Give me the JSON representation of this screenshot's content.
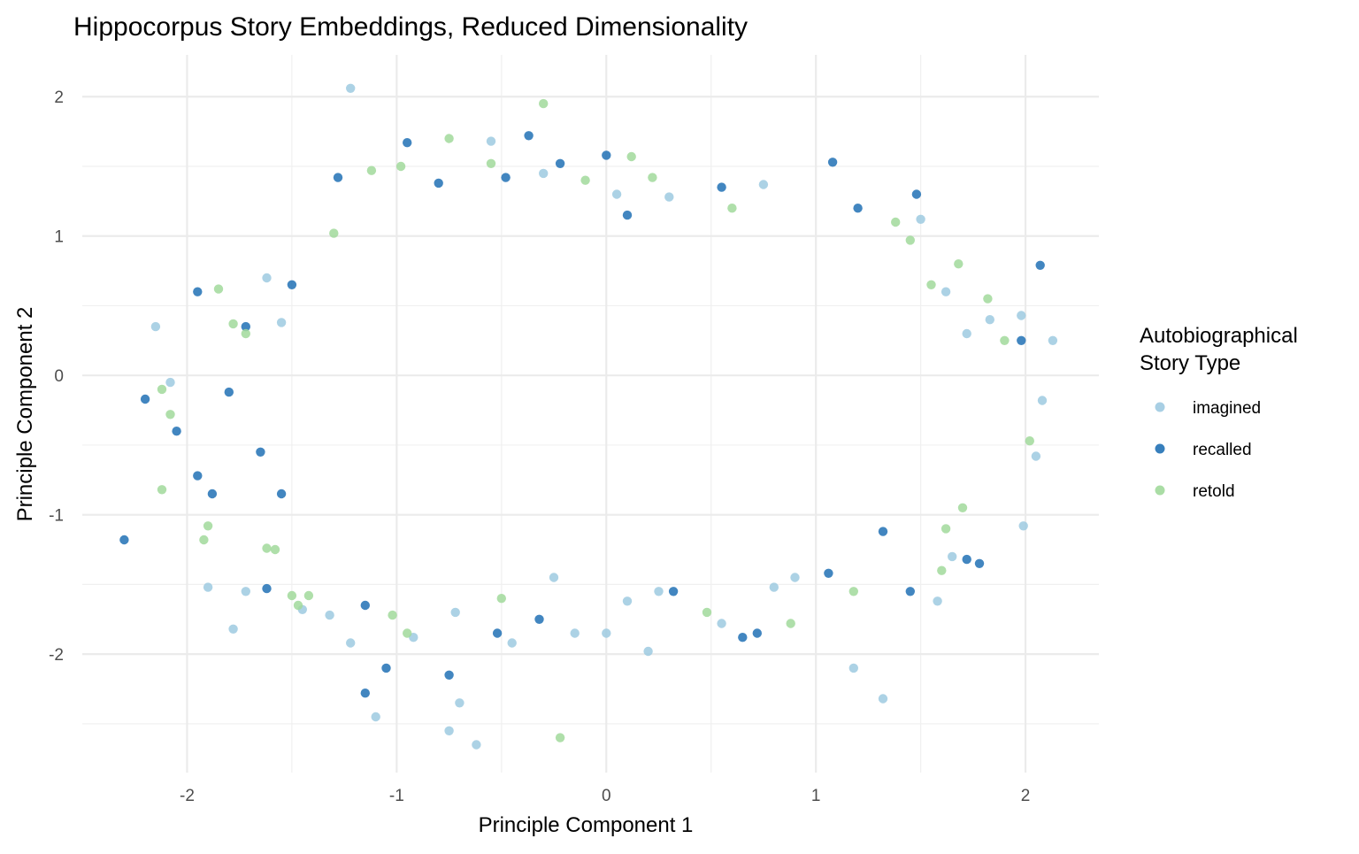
{
  "chart_data": {
    "type": "scatter",
    "title": "Hippocorpus Story Embeddings, Reduced Dimensionality",
    "xlabel": "Principle Component 1",
    "ylabel": "Principle Component 2",
    "xlim": [
      -2.5,
      2.35
    ],
    "ylim": [
      -2.85,
      2.3
    ],
    "xticks": [
      -2,
      -1,
      0,
      1,
      2
    ],
    "yticks": [
      -2,
      -1,
      0,
      1,
      2
    ],
    "xtick_labels": [
      "-2",
      "-1",
      "0",
      "1",
      "2"
    ],
    "ytick_labels": [
      "-2",
      "-1",
      "0",
      "1",
      "2"
    ],
    "grid": true,
    "legend": {
      "title": "Autobiographical\nStory Type",
      "position": "right"
    },
    "series": [
      {
        "name": "imagined",
        "color": "#9ECAE1",
        "points": [
          [
            -1.22,
            2.06
          ],
          [
            -0.55,
            1.68
          ],
          [
            -0.3,
            1.45
          ],
          [
            0.75,
            1.37
          ],
          [
            1.5,
            1.12
          ],
          [
            -2.15,
            0.35
          ],
          [
            -1.62,
            0.7
          ],
          [
            -1.55,
            0.38
          ],
          [
            -2.08,
            -0.05
          ],
          [
            -1.9,
            -1.52
          ],
          [
            -1.72,
            -1.55
          ],
          [
            -1.78,
            -1.82
          ],
          [
            -1.45,
            -1.68
          ],
          [
            -1.32,
            -1.72
          ],
          [
            -1.22,
            -1.92
          ],
          [
            -0.92,
            -1.88
          ],
          [
            -0.72,
            -1.7
          ],
          [
            -0.45,
            -1.92
          ],
          [
            -0.15,
            -1.85
          ],
          [
            0.0,
            -1.85
          ],
          [
            0.2,
            -1.98
          ],
          [
            -0.75,
            -2.55
          ],
          [
            -0.62,
            -2.65
          ],
          [
            -0.7,
            -2.35
          ],
          [
            -1.1,
            -2.45
          ],
          [
            1.32,
            -2.32
          ],
          [
            1.18,
            -2.1
          ],
          [
            2.08,
            -0.18
          ],
          [
            2.05,
            -0.58
          ],
          [
            2.13,
            0.25
          ],
          [
            1.98,
            0.43
          ],
          [
            1.83,
            0.4
          ],
          [
            1.72,
            0.3
          ],
          [
            1.62,
            0.6
          ],
          [
            1.58,
            -1.62
          ],
          [
            1.65,
            -1.3
          ],
          [
            1.99,
            -1.08
          ],
          [
            0.1,
            -1.62
          ],
          [
            0.25,
            -1.55
          ],
          [
            -0.25,
            -1.45
          ],
          [
            0.55,
            -1.78
          ],
          [
            0.8,
            -1.52
          ],
          [
            0.9,
            -1.45
          ],
          [
            0.3,
            1.28
          ],
          [
            0.05,
            1.3
          ]
        ]
      },
      {
        "name": "recalled",
        "color": "#2171B5",
        "points": [
          [
            -0.95,
            1.67
          ],
          [
            -0.37,
            1.72
          ],
          [
            0.0,
            1.58
          ],
          [
            1.08,
            1.53
          ],
          [
            1.48,
            1.3
          ],
          [
            -2.3,
            -1.18
          ],
          [
            -2.2,
            -0.17
          ],
          [
            -2.05,
            -0.4
          ],
          [
            -1.95,
            0.6
          ],
          [
            -1.95,
            -0.72
          ],
          [
            -1.88,
            -0.85
          ],
          [
            -1.62,
            -1.53
          ],
          [
            -1.05,
            -2.1
          ],
          [
            -1.15,
            -2.28
          ],
          [
            -0.75,
            -2.15
          ],
          [
            -0.52,
            -1.85
          ],
          [
            -0.32,
            -1.75
          ],
          [
            0.32,
            -1.55
          ],
          [
            0.65,
            -1.88
          ],
          [
            0.72,
            -1.85
          ],
          [
            2.07,
            0.79
          ],
          [
            1.98,
            0.25
          ],
          [
            1.78,
            -1.35
          ],
          [
            1.72,
            -1.32
          ],
          [
            1.45,
            -1.55
          ],
          [
            1.32,
            -1.12
          ],
          [
            1.06,
            -1.42
          ],
          [
            -1.15,
            -1.65
          ],
          [
            -0.8,
            1.38
          ],
          [
            -0.48,
            1.42
          ],
          [
            -1.28,
            1.42
          ],
          [
            0.55,
            1.35
          ],
          [
            1.2,
            1.2
          ],
          [
            -0.22,
            1.52
          ],
          [
            0.1,
            1.15
          ],
          [
            -1.5,
            0.65
          ],
          [
            -1.72,
            0.35
          ],
          [
            -1.8,
            -0.12
          ],
          [
            -1.65,
            -0.55
          ],
          [
            -1.55,
            -0.85
          ]
        ]
      },
      {
        "name": "retold",
        "color": "#A1D99B",
        "points": [
          [
            -0.3,
            1.95
          ],
          [
            -0.75,
            1.7
          ],
          [
            0.12,
            1.57
          ],
          [
            -1.12,
            1.47
          ],
          [
            -0.98,
            1.5
          ],
          [
            -0.55,
            1.52
          ],
          [
            0.22,
            1.42
          ],
          [
            -0.1,
            1.4
          ],
          [
            -2.12,
            -0.82
          ],
          [
            -2.12,
            -0.1
          ],
          [
            -2.08,
            -0.28
          ],
          [
            -1.92,
            -1.18
          ],
          [
            -1.9,
            -1.08
          ],
          [
            -1.62,
            -1.24
          ],
          [
            -1.58,
            -1.25
          ],
          [
            -1.5,
            -1.58
          ],
          [
            -1.42,
            -1.58
          ],
          [
            -1.47,
            -1.65
          ],
          [
            -1.02,
            -1.72
          ],
          [
            -0.95,
            -1.85
          ],
          [
            -0.5,
            -1.6
          ],
          [
            0.48,
            -1.7
          ],
          [
            0.88,
            -1.78
          ],
          [
            1.18,
            -1.55
          ],
          [
            1.6,
            -1.4
          ],
          [
            -0.22,
            -2.6
          ],
          [
            2.02,
            -0.47
          ],
          [
            1.9,
            0.25
          ],
          [
            1.82,
            0.55
          ],
          [
            1.68,
            0.8
          ],
          [
            1.55,
            0.65
          ],
          [
            1.45,
            0.97
          ],
          [
            1.38,
            1.1
          ],
          [
            -1.85,
            0.62
          ],
          [
            -1.78,
            0.37
          ],
          [
            -1.72,
            0.3
          ],
          [
            -1.3,
            1.02
          ],
          [
            1.7,
            -0.95
          ],
          [
            1.62,
            -1.1
          ],
          [
            0.6,
            1.2
          ]
        ]
      }
    ]
  }
}
